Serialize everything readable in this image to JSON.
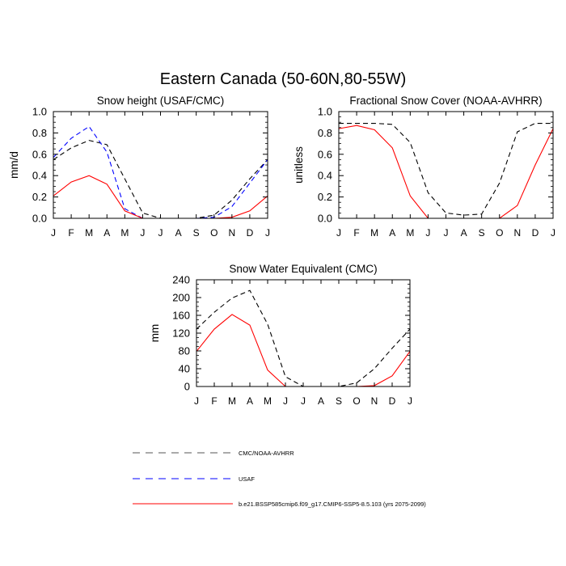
{
  "figure": {
    "title": "Eastern Canada (50-60N,80-55W)"
  },
  "legend": [
    {
      "label": "CMC/NOAA-AVHRR",
      "color": "#000000",
      "dash": "dashed"
    },
    {
      "label": "USAF",
      "color": "#0000ff",
      "dash": "dashed"
    },
    {
      "label": "b.e21.BSSP585cmip6.f09_g17.CMIP6-SSP5-8.5.103 (yrs 2075-2099)",
      "color": "#ff0000",
      "dash": "solid"
    }
  ],
  "chart_data": [
    {
      "type": "line",
      "title": "Snow height (USAF/CMC)",
      "ylabel": "mm/d",
      "xlabel": "",
      "categories": [
        "J",
        "F",
        "M",
        "A",
        "M",
        "J",
        "J",
        "A",
        "S",
        "O",
        "N",
        "D",
        "J"
      ],
      "ylim": [
        0,
        1.0
      ],
      "yticks": [
        0.0,
        0.2,
        0.4,
        0.6,
        0.8,
        1.0
      ],
      "ytick_labels": [
        "0.0",
        "0.2",
        "0.4",
        "0.6",
        "0.8",
        "1.0"
      ],
      "series": [
        {
          "name": "CMC/NOAA-AVHRR",
          "color": "#000000",
          "dash": "dashed",
          "values": [
            0.55,
            0.66,
            0.73,
            0.69,
            0.37,
            0.05,
            0.0,
            0.0,
            0.0,
            0.03,
            0.17,
            0.37,
            0.55
          ]
        },
        {
          "name": "USAF",
          "color": "#0000ff",
          "dash": "dashed",
          "values": [
            0.57,
            0.75,
            0.86,
            0.62,
            0.09,
            0.0,
            0.0,
            0.0,
            0.0,
            0.01,
            0.11,
            0.33,
            0.55
          ]
        },
        {
          "name": "b.e21.BSSP585cmip6.f09_g17.CMIP6-SSP5-8.5.103 (yrs 2075-2099)",
          "color": "#ff0000",
          "dash": "solid",
          "values": [
            0.21,
            0.34,
            0.4,
            0.32,
            0.07,
            0.0,
            0.0,
            0.0,
            0.0,
            0.0,
            0.01,
            0.07,
            0.21
          ]
        }
      ]
    },
    {
      "type": "line",
      "title": "Fractional Snow Cover (NOAA-AVHRR)",
      "ylabel": "unitless",
      "xlabel": "",
      "categories": [
        "J",
        "F",
        "M",
        "A",
        "M",
        "J",
        "J",
        "A",
        "S",
        "O",
        "N",
        "D",
        "J"
      ],
      "ylim": [
        0,
        1.0
      ],
      "yticks": [
        0.0,
        0.2,
        0.4,
        0.6,
        0.8,
        1.0
      ],
      "ytick_labels": [
        "0.0",
        "0.2",
        "0.4",
        "0.6",
        "0.8",
        "1.0"
      ],
      "series": [
        {
          "name": "CMC/NOAA-AVHRR",
          "color": "#000000",
          "dash": "dashed",
          "values": [
            0.89,
            0.89,
            0.89,
            0.88,
            0.71,
            0.24,
            0.05,
            0.03,
            0.04,
            0.33,
            0.81,
            0.89,
            0.89
          ]
        },
        {
          "name": "b.e21.BSSP585cmip6.f09_g17.CMIP6-SSP5-8.5.103 (yrs 2075-2099)",
          "color": "#ff0000",
          "dash": "solid",
          "values": [
            0.84,
            0.87,
            0.83,
            0.66,
            0.21,
            0.0,
            0.0,
            0.0,
            0.0,
            0.0,
            0.12,
            0.5,
            0.84
          ]
        }
      ]
    },
    {
      "type": "line",
      "title": "Snow Water Equivalent (CMC)",
      "ylabel": "mm",
      "xlabel": "",
      "categories": [
        "J",
        "F",
        "M",
        "A",
        "M",
        "J",
        "J",
        "A",
        "S",
        "O",
        "N",
        "D",
        "J"
      ],
      "ylim": [
        0,
        240
      ],
      "yticks": [
        0,
        40,
        80,
        120,
        160,
        200,
        240
      ],
      "ytick_labels": [
        "0",
        "40",
        "80",
        "120",
        "160",
        "200",
        "240"
      ],
      "series": [
        {
          "name": "CMC/NOAA-AVHRR",
          "color": "#000000",
          "dash": "dashed",
          "values": [
            129,
            167,
            199,
            216,
            140,
            22,
            0,
            0,
            0,
            8,
            40,
            86,
            129
          ]
        },
        {
          "name": "b.e21.BSSP585cmip6.f09_g17.CMIP6-SSP5-8.5.103 (yrs 2075-2099)",
          "color": "#ff0000",
          "dash": "solid",
          "values": [
            79,
            129,
            162,
            138,
            37,
            0,
            0,
            0,
            0,
            0,
            2,
            24,
            79
          ]
        }
      ]
    }
  ]
}
